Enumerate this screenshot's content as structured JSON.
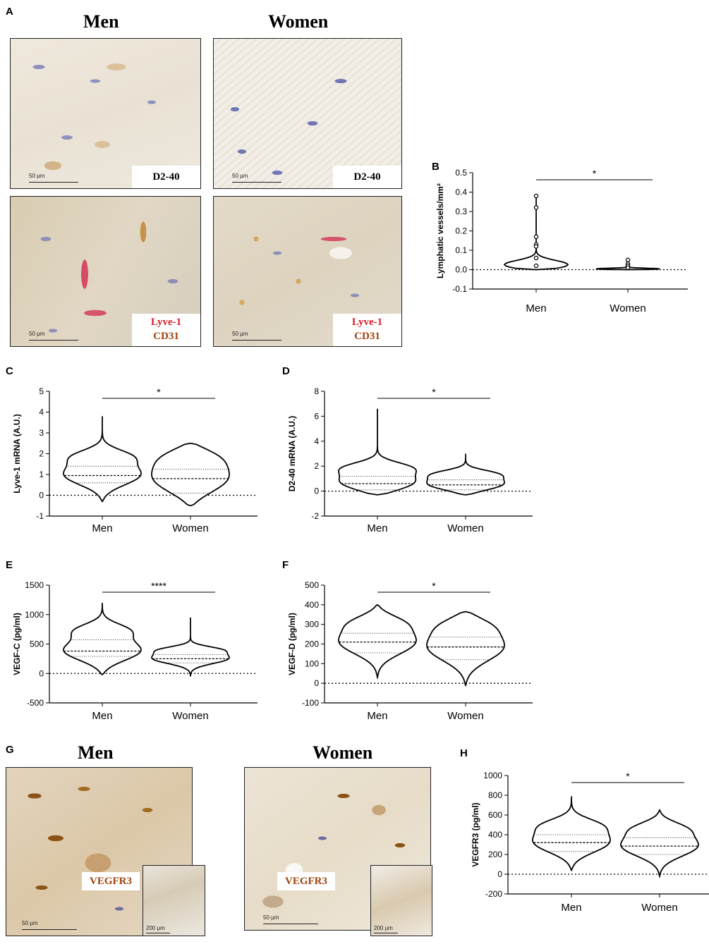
{
  "panels": {
    "A": {
      "letter": "A",
      "title_men": "Men",
      "title_women": "Women",
      "image_labels": {
        "top_men": [
          "D2-40"
        ],
        "top_women": [
          "D2-40"
        ],
        "bottom_men": [
          "Lyve-1",
          "CD31"
        ],
        "bottom_women": [
          "Lyve-1",
          "CD31"
        ]
      },
      "scale": "50 µm"
    },
    "G": {
      "letter": "G",
      "title_men": "Men",
      "title_women": "Women",
      "image_label": "VEGFR3",
      "scale_main": "50 µm",
      "scale_inset": "200 µm"
    }
  },
  "colors": {
    "d240_label": "#a0420c",
    "lyve1_label": "#d81b27",
    "cd31_label": "#a0420c",
    "vegfr3_label": "#a0420c",
    "violin_stroke": "#000000"
  },
  "chart_data": [
    {
      "panel": "B",
      "type": "violin",
      "categories": [
        "Men",
        "Women"
      ],
      "ylabel": "Lymphatic vessels/mm²",
      "ylim": [
        -0.1,
        0.5
      ],
      "yticks": [
        -0.1,
        0.0,
        0.1,
        0.2,
        0.3,
        0.4,
        0.5
      ],
      "ytick_labels": [
        "-0.1",
        "0.0",
        "0.1",
        "0.2",
        "0.3",
        "0.4",
        "0.5"
      ],
      "baseline": 0,
      "significance": "*",
      "series": [
        {
          "category": "Men",
          "min": 0.0,
          "max": 0.39,
          "q1": 0.0,
          "median": 0.0,
          "q3": 0.0,
          "points": [
            0.38,
            0.32,
            0.17,
            0.13,
            0.12,
            0.06,
            0.02
          ]
        },
        {
          "category": "Women",
          "min": 0.0,
          "max": 0.06,
          "q1": 0.0,
          "median": 0.0,
          "q3": 0.0,
          "points": [
            0.05,
            0.03,
            0.02,
            0.01
          ]
        }
      ]
    },
    {
      "panel": "C",
      "type": "violin",
      "categories": [
        "Men",
        "Women"
      ],
      "ylabel": "Lyve-1 mRNA (A.U.)",
      "ylim": [
        -1,
        5
      ],
      "yticks": [
        -1,
        0,
        1,
        2,
        3,
        4,
        5
      ],
      "ytick_labels": [
        "-1",
        "0",
        "1",
        "2",
        "3",
        "4",
        "5"
      ],
      "baseline": 0,
      "significance": "*",
      "series": [
        {
          "category": "Men",
          "min": -0.3,
          "max": 3.8,
          "q1": 0.6,
          "median": 0.95,
          "q3": 1.4
        },
        {
          "category": "Women",
          "min": -0.5,
          "max": 2.5,
          "q1": 0.1,
          "median": 0.8,
          "q3": 1.25
        }
      ]
    },
    {
      "panel": "D",
      "type": "violin",
      "categories": [
        "Men",
        "Women"
      ],
      "ylabel": "D2-40 mRNA (A.U.)",
      "ylim": [
        -2,
        8
      ],
      "yticks": [
        -2,
        0,
        2,
        4,
        6,
        8
      ],
      "ytick_labels": [
        "-2",
        "0",
        "2",
        "4",
        "6",
        "8"
      ],
      "baseline": 0,
      "significance": "*",
      "series": [
        {
          "category": "Men",
          "min": -0.3,
          "max": 6.6,
          "q1": 0.1,
          "median": 0.6,
          "q3": 1.2
        },
        {
          "category": "Women",
          "min": -0.3,
          "max": 3.0,
          "q1": 0.1,
          "median": 0.5,
          "q3": 0.9
        }
      ]
    },
    {
      "panel": "E",
      "type": "violin",
      "categories": [
        "Men",
        "Women"
      ],
      "ylabel": "VEGF-C (pg/ml)",
      "ylim": [
        -500,
        1500
      ],
      "yticks": [
        -500,
        0,
        500,
        1000,
        1500
      ],
      "ytick_labels": [
        "-500",
        "0",
        "500",
        "1000",
        "1500"
      ],
      "baseline": 0,
      "significance": "****",
      "series": [
        {
          "category": "Men",
          "min": -20,
          "max": 1200,
          "q1": 290,
          "median": 380,
          "q3": 570
        },
        {
          "category": "Women",
          "min": -50,
          "max": 950,
          "q1": 180,
          "median": 250,
          "q3": 320
        }
      ]
    },
    {
      "panel": "F",
      "type": "violin",
      "categories": [
        "Men",
        "Women"
      ],
      "ylabel": "VEGF-D (pg/ml)",
      "ylim": [
        -100,
        500
      ],
      "yticks": [
        -100,
        0,
        100,
        200,
        300,
        400,
        500
      ],
      "ytick_labels": [
        "-100",
        "0",
        "100",
        "200",
        "300",
        "400",
        "500"
      ],
      "baseline": 0,
      "significance": "*",
      "series": [
        {
          "category": "Men",
          "min": 30,
          "max": 400,
          "q1": 155,
          "median": 210,
          "q3": 255
        },
        {
          "category": "Women",
          "min": -10,
          "max": 365,
          "q1": 120,
          "median": 185,
          "q3": 235
        }
      ]
    },
    {
      "panel": "H",
      "type": "violin",
      "categories": [
        "Men",
        "Women"
      ],
      "ylabel": "VEGFR3 (pg/ml)",
      "ylim": [
        -200,
        1000
      ],
      "yticks": [
        -200,
        0,
        200,
        400,
        600,
        800,
        1000
      ],
      "ytick_labels": [
        "-200",
        "0",
        "200",
        "400",
        "600",
        "800",
        "1000"
      ],
      "baseline": 0,
      "significance": "*",
      "series": [
        {
          "category": "Men",
          "min": 40,
          "max": 790,
          "q1": 230,
          "median": 320,
          "q3": 400
        },
        {
          "category": "Women",
          "min": -20,
          "max": 650,
          "q1": 200,
          "median": 285,
          "q3": 370
        }
      ]
    }
  ]
}
